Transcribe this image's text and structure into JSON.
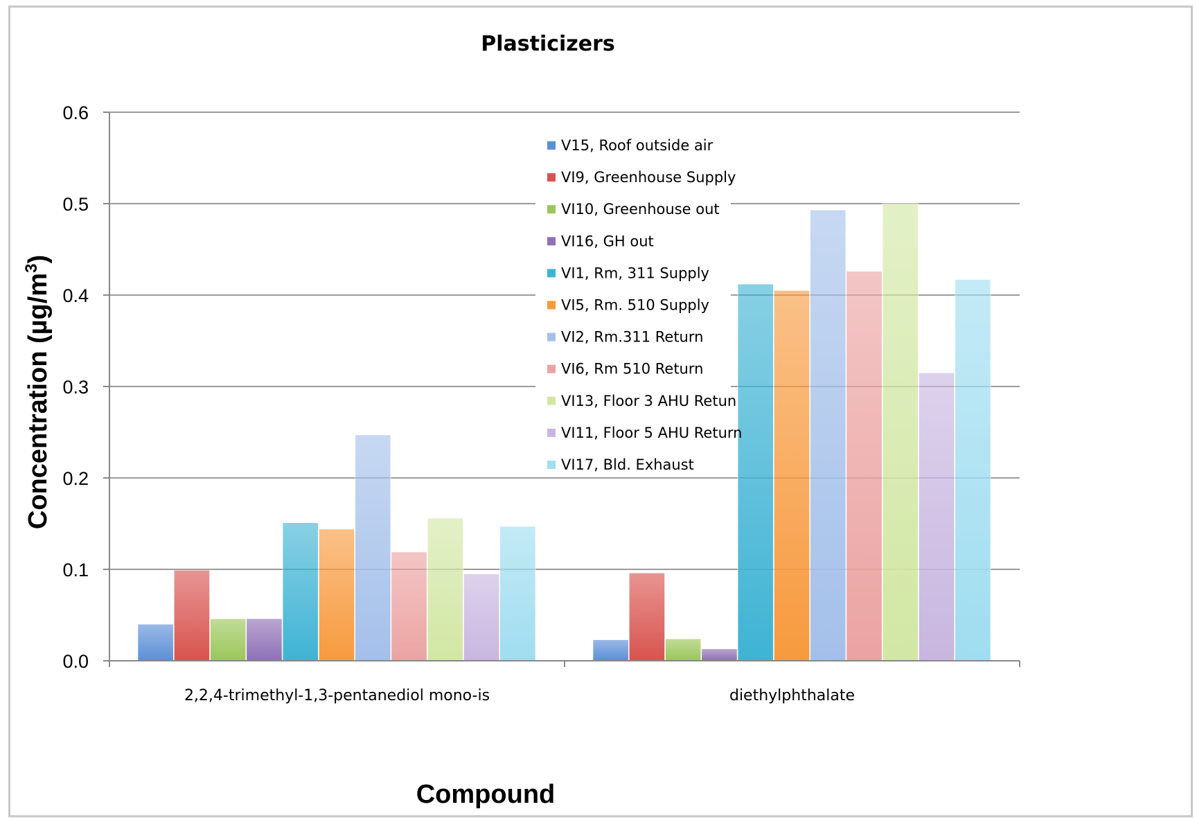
{
  "chart_data": {
    "type": "bar",
    "title": "Plasticizers",
    "xlabel": "Compound",
    "ylabel": "Concentration (µg/m",
    "ylabel_superscript": "3",
    "ylabel_suffix": ")",
    "ylim": [
      0,
      0.6
    ],
    "yticks": [
      "0.0",
      "0.1",
      "0.2",
      "0.3",
      "0.4",
      "0.5",
      "0.6"
    ],
    "grid": true,
    "legend_position": "top-center",
    "categories": [
      "2,2,4-trimethyl-1,3-pentanediol mono-is",
      "diethylphthalate"
    ],
    "series": [
      {
        "name": "V15, Roof outside air",
        "color": "#5b8fd6",
        "values": [
          0.04,
          0.023
        ]
      },
      {
        "name": "VI9, Greenhouse Supply",
        "color": "#d9534f",
        "values": [
          0.099,
          0.096
        ]
      },
      {
        "name": "VI10, Greenhouse out",
        "color": "#9bc659",
        "values": [
          0.046,
          0.024
        ]
      },
      {
        "name": "VI16, GH out",
        "color": "#8e70b6",
        "values": [
          0.046,
          0.013
        ]
      },
      {
        "name": "VI1, Rm, 311 Supply",
        "color": "#3fb3d4",
        "values": [
          0.151,
          0.412
        ]
      },
      {
        "name": "VI5, Rm. 510 Supply",
        "color": "#f79a3e",
        "values": [
          0.144,
          0.405
        ]
      },
      {
        "name": "VI2, Rm.311 Return",
        "color": "#a4c0ea",
        "values": [
          0.247,
          0.493
        ]
      },
      {
        "name": "VI6, Rm 510 Return",
        "color": "#eba3a2",
        "values": [
          0.119,
          0.426
        ]
      },
      {
        "name": "VI13, Floor 3 AHU Retun",
        "color": "#d2e7a4",
        "values": [
          0.156,
          0.5
        ]
      },
      {
        "name": "VI11, Floor 5 AHU Return",
        "color": "#c8b6e0",
        "values": [
          0.095,
          0.315
        ]
      },
      {
        "name": "VI17, Bld. Exhaust",
        "color": "#9fddf0",
        "values": [
          0.147,
          0.417
        ]
      }
    ]
  }
}
